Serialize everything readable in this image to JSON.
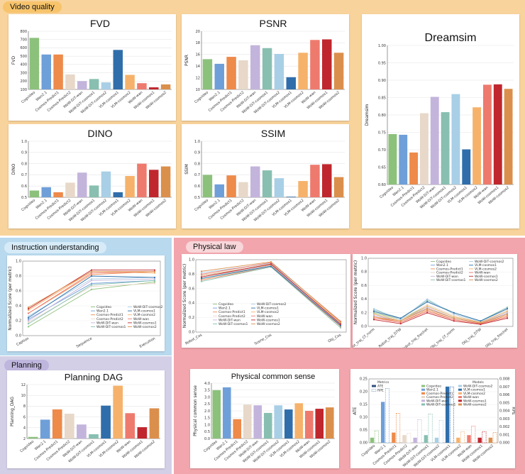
{
  "sections": {
    "video_quality": "Video quality",
    "instruction": "Instruction understanding",
    "physical_law": "Physical law",
    "planning": "Planning"
  },
  "colors": {
    "video_bg": "#f8d39b",
    "instruction_bg": "#b8d9ee",
    "physical_bg": "#f2a5ac",
    "planning_bg": "#d3cfe7",
    "tag_video": "#f7c46c",
    "tag_instruction": "#d6ebf7",
    "tag_physical": "#f8d6d9",
    "tag_planning": "#bfb6de"
  },
  "model_colors": [
    "#8cc17c",
    "#6f9fd8",
    "#ee8a4a",
    "#e7d8c9",
    "#c3b4dc",
    "#88bfb0",
    "#a8cfe6",
    "#2f6eaa",
    "#f6b26b",
    "#ee7a6e",
    "#c0262d",
    "#db8f4c"
  ],
  "chart_data": [
    {
      "id": "fvd",
      "type": "bar",
      "title": "FVD",
      "ylabel": "FVD",
      "ylim": [
        100,
        800
      ],
      "yticks": [
        100,
        200,
        300,
        400,
        500,
        600,
        700,
        800
      ],
      "categories": [
        "Cogvideo",
        "Wan2.1",
        "Cosmos-Predict1",
        "Cosmos-Predict2",
        "WoW-DiT-wan",
        "WoW-DiT-cosmos1",
        "WoW-DiT-cosmos2",
        "VLM-cosmos1",
        "VLM-cosmos2",
        "WoW-wan",
        "WoW-cosmos1",
        "WoW-cosmos2"
      ],
      "values": [
        720,
        520,
        520,
        280,
        200,
        225,
        185,
        575,
        275,
        175,
        125,
        160
      ]
    },
    {
      "id": "psnr",
      "type": "bar",
      "title": "PSNR",
      "ylabel": "PSNR",
      "ylim": [
        10,
        20
      ],
      "yticks": [
        10,
        12,
        14,
        16,
        18,
        20
      ],
      "categories": [
        "Cogvideo",
        "Wan2.1",
        "Cosmos-Predict1",
        "Cosmos-Predict2",
        "WoW-DiT-wan",
        "WoW-DiT-cosmos1",
        "WoW-DiT-cosmos2",
        "VLM-cosmos1",
        "VLM-cosmos2",
        "WoW-wan",
        "WoW-cosmos1",
        "WoW-cosmos2"
      ],
      "values": [
        15.2,
        14.4,
        15.6,
        15.0,
        17.6,
        17.1,
        16.1,
        12.1,
        16.3,
        18.5,
        18.6,
        16.3
      ]
    },
    {
      "id": "dreamsim",
      "type": "bar",
      "title": "Dreamsim",
      "ylabel": "Dreamsim",
      "ylim": [
        0.6,
        1.0
      ],
      "yticks": [
        "0.60",
        "0.65",
        "0.70",
        "0.75",
        "0.80",
        "0.85",
        "0.90",
        "0.95",
        "1.00"
      ],
      "categories": [
        "Cogvideo",
        "Wan2.1",
        "Cosmos-Predict1",
        "Cosmos-Predict2",
        "WoW-DiT-wan",
        "WoW-DiT-cosmos1",
        "WoW-DiT-cosmos2",
        "VLM-cosmos1",
        "VLM-cosmos2",
        "WoW-wan",
        "WoW-cosmos1",
        "WoW-cosmos2"
      ],
      "values": [
        0.745,
        0.743,
        0.692,
        0.805,
        0.852,
        0.808,
        0.86,
        0.701,
        0.822,
        0.887,
        0.888,
        0.875
      ]
    },
    {
      "id": "dino",
      "type": "bar",
      "title": "DINO",
      "ylabel": "DINO",
      "ylim": [
        0.5,
        1.0
      ],
      "yticks": [
        "0.5",
        "0.6",
        "0.7",
        "0.8",
        "0.9",
        "1.0"
      ],
      "categories": [
        "Cogvideo",
        "Wan2.1",
        "Cosmos-Predict1",
        "Cosmos-Predict2",
        "WoW-DiT-wan",
        "WoW-DiT-cosmos1",
        "WoW-DiT-cosmos2",
        "VLM-cosmos1",
        "VLM-cosmos2",
        "WoW-wan",
        "WoW-cosmos1",
        "WoW-cosmos2"
      ],
      "values": [
        0.56,
        0.59,
        0.545,
        0.63,
        0.72,
        0.605,
        0.73,
        0.545,
        0.69,
        0.8,
        0.745,
        0.775
      ]
    },
    {
      "id": "ssim",
      "type": "bar",
      "title": "SSIM",
      "ylabel": "SSIM",
      "ylim": [
        0.5,
        1.0
      ],
      "yticks": [
        "0.5",
        "0.6",
        "0.7",
        "0.8",
        "0.9",
        "1.0"
      ],
      "categories": [
        "Cogvideo",
        "Wan2.1",
        "Cosmos-Predict1",
        "Cosmos-Predict2",
        "WoW-DiT-wan",
        "WoW-DiT-cosmos1",
        "WoW-DiT-cosmos2",
        "VLM-cosmos1",
        "VLM-cosmos2",
        "WoW-wan",
        "WoW-cosmos1",
        "WoW-cosmos2"
      ],
      "values": [
        0.7,
        0.615,
        0.695,
        0.635,
        0.775,
        0.74,
        0.67,
        0.505,
        0.645,
        0.79,
        0.795,
        0.68
      ]
    },
    {
      "id": "planning",
      "type": "bar",
      "title": "Planning DAG",
      "ylabel": "Planning_DAG",
      "ylim": [
        2,
        12
      ],
      "yticks": [
        2,
        4,
        6,
        8,
        10,
        12
      ],
      "categories": [
        "Cogvideo",
        "Wan2.1",
        "Cosmos-Predict1",
        "Cosmos-Predict2",
        "WoW-DiT-wan",
        "WoW-DiT-cosmos1",
        "VLM-cosmos1",
        "VLM-cosmos2",
        "WoW-wan",
        "WoW-cosmos1",
        "WoW-cosmos2"
      ],
      "values": [
        2.3,
        5.5,
        7.4,
        6.6,
        4.6,
        2.8,
        8.1,
        11.8,
        6.7,
        4.1,
        7.6
      ]
    },
    {
      "id": "commonsense",
      "type": "bar",
      "title": "Physical common sense",
      "ylabel": "Physical common sense",
      "ylim": [
        0,
        4
      ],
      "yticks": [
        "0.0",
        "0.5",
        "1.0",
        "1.5",
        "2.0",
        "2.5",
        "3.0",
        "3.5",
        "4.0"
      ],
      "categories": [
        "Cogvideo",
        "Wan2.1",
        "Cosmos-Predict1",
        "Cosmos-Predict2",
        "WoW-DiT-wan",
        "WoW-DiT-cosmos1",
        "WoW-DiT-cosmos2",
        "VLM-cosmos1",
        "VLM-cosmos2",
        "WoW-wan",
        "WoW-cosmos1",
        "WoW-cosmos2"
      ],
      "values": [
        3.5,
        3.7,
        1.4,
        2.45,
        2.4,
        1.85,
        2.4,
        2.1,
        2.55,
        2.0,
        2.15,
        2.25
      ]
    },
    {
      "id": "instruction",
      "type": "line",
      "ylabel": "Normalized Score (per metric)",
      "ylim": [
        0,
        1
      ],
      "x": [
        "Caption",
        "Sequence",
        "Execution"
      ],
      "legend": [
        "Cogvideo",
        "Wan2.1",
        "Cosmos-Predict1",
        "Cosmos-Predict2",
        "WoW-DiT-wan",
        "WoW-DiT-cosmos1",
        "WoW-DiT-cosmos2",
        "VLM-cosmos1",
        "VLM-cosmos2",
        "WoW-wan",
        "WoW-cosmos1",
        "WoW-cosmos2"
      ],
      "series": [
        [
          0.12,
          0.62,
          0.72
        ],
        [
          0.22,
          0.7,
          0.74
        ],
        [
          0.3,
          0.82,
          0.86
        ],
        [
          0.18,
          0.66,
          0.7
        ],
        [
          0.2,
          0.74,
          0.76
        ],
        [
          0.16,
          0.68,
          0.74
        ],
        [
          0.26,
          0.76,
          0.78
        ],
        [
          0.24,
          0.8,
          0.78
        ],
        [
          0.34,
          0.86,
          0.84
        ],
        [
          0.3,
          0.84,
          0.86
        ],
        [
          0.36,
          0.88,
          0.88
        ],
        [
          0.38,
          0.86,
          0.86
        ]
      ]
    },
    {
      "id": "physlaw1",
      "type": "line",
      "ylabel": "Normalized Score (per metric)",
      "ylim": [
        0,
        1
      ],
      "x": [
        "Robot_Cos",
        "Scene_Cos",
        "Obj_Cos"
      ],
      "legend": [
        "Cogvideo",
        "Wan2.1",
        "Cosmos-Predict1",
        "Cosmos-Predict2",
        "WoW-DiT-wan",
        "WoW-DiT-cosmos1",
        "WoW-DiT-cosmos2",
        "VLM-cosmos1",
        "VLM-cosmos2",
        "WoW-wan",
        "WoW-cosmos1",
        "WoW-cosmos2"
      ],
      "series": [
        [
          0.74,
          0.92,
          0.1
        ],
        [
          0.78,
          0.93,
          0.12
        ],
        [
          0.72,
          0.9,
          0.08
        ],
        [
          0.8,
          0.94,
          0.14
        ],
        [
          0.76,
          0.92,
          0.1
        ],
        [
          0.7,
          0.9,
          0.06
        ],
        [
          0.82,
          0.95,
          0.12
        ],
        [
          0.74,
          0.91,
          0.09
        ],
        [
          0.78,
          0.93,
          0.13
        ],
        [
          0.8,
          0.96,
          0.15
        ],
        [
          0.76,
          0.94,
          0.11
        ],
        [
          0.84,
          0.97,
          0.14
        ]
      ]
    },
    {
      "id": "physlaw2",
      "type": "line",
      "ylabel": "Normalized Score (per metric)",
      "ylim": [
        0,
        1
      ],
      "x": [
        "Robot_traj_Cf_norm",
        "Robot_traj_DTW",
        "Robot_traj_frechet",
        "Obj_traj_Cf_norm",
        "Obj_traj_DTW",
        "Obj_traj_frechet"
      ],
      "legend": [
        "Cogvideo",
        "Wan2.1",
        "Cosmos-Predict1",
        "Cosmos-Predict2",
        "WoW-DiT-wan",
        "WoW-DiT-cosmos1",
        "WoW-DiT-cosmos2",
        "VLM-cosmos1",
        "VLM-cosmos2",
        "WoW-wan",
        "WoW-cosmos1",
        "WoW-cosmos2"
      ],
      "series": [
        [
          0.2,
          0.1,
          0.3,
          0.14,
          0.06,
          0.22
        ],
        [
          0.18,
          0.08,
          0.26,
          0.12,
          0.05,
          0.18
        ],
        [
          0.14,
          0.06,
          0.24,
          0.1,
          0.04,
          0.16
        ],
        [
          0.22,
          0.1,
          0.32,
          0.16,
          0.06,
          0.24
        ],
        [
          0.16,
          0.08,
          0.28,
          0.12,
          0.05,
          0.2
        ],
        [
          0.24,
          0.12,
          0.38,
          0.2,
          0.08,
          0.28
        ],
        [
          0.26,
          0.1,
          0.4,
          0.18,
          0.07,
          0.26
        ],
        [
          0.22,
          0.12,
          0.36,
          0.2,
          0.08,
          0.26
        ],
        [
          0.18,
          0.08,
          0.3,
          0.14,
          0.06,
          0.22
        ],
        [
          0.12,
          0.06,
          0.22,
          0.1,
          0.04,
          0.14
        ],
        [
          0.1,
          0.04,
          0.2,
          0.08,
          0.03,
          0.12
        ],
        [
          0.14,
          0.08,
          0.26,
          0.12,
          0.05,
          0.18
        ]
      ]
    },
    {
      "id": "ate_rpe",
      "type": "bar",
      "ylabel": "ATE",
      "ylabel2": "RPE",
      "ylim": [
        0,
        0.25
      ],
      "ylim2": [
        0,
        0.008
      ],
      "yticks": [
        "0.00",
        "0.05",
        "0.10",
        "0.15",
        "0.20",
        "0.25"
      ],
      "yticks2": [
        "0.000",
        "0.001",
        "0.002",
        "0.003",
        "0.004",
        "0.005",
        "0.006",
        "0.007",
        "0.008"
      ],
      "legend_title_metrics": "Metrics",
      "legend_metrics": [
        "ATE",
        "RPE"
      ],
      "legend_title_models": "Models",
      "categories": [
        "Cogvideo",
        "Wan2.1",
        "Cosmos-Predict1",
        "Cosmos-Predict2",
        "WoW-DiT-wan",
        "WoW-DiT-cosmos1",
        "WoW-DiT-cosmos2",
        "VLM-cosmos1",
        "VLM-cosmos2",
        "WoW-wan",
        "WoW-cosmos1",
        "WoW-cosmos2"
      ],
      "ate": [
        0.02,
        0.16,
        0.04,
        0.03,
        0.02,
        0.03,
        0.02,
        0.22,
        0.02,
        0.03,
        0.02,
        0.02
      ],
      "rpe": [
        0.0015,
        0.0068,
        0.0037,
        0.0012,
        0.0029,
        0.0036,
        0.0028,
        0.007,
        0.0014,
        0.0021,
        0.0014,
        0.0013
      ]
    }
  ]
}
